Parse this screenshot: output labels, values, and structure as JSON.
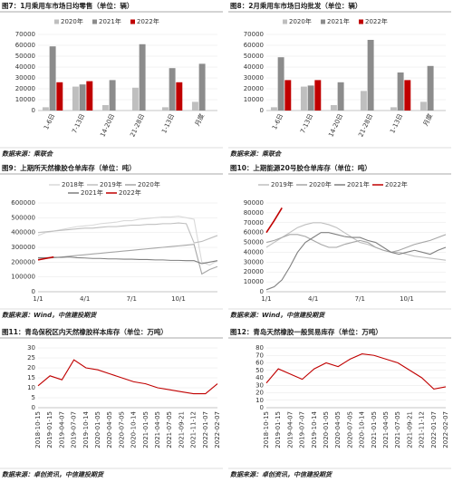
{
  "chart_data": [
    {
      "type": "bar",
      "title": "图7：1月乘用车市场日均零售（单位：辆）",
      "source": "数据来源：乘联会",
      "categories": [
        "1-6日",
        "7-13日",
        "14-20日",
        "21-28日",
        "1-13日",
        "月度"
      ],
      "series": [
        {
          "name": "2020年",
          "color": "#bfbfbf",
          "values": [
            3000,
            22000,
            5000,
            21000,
            3000,
            8000
          ]
        },
        {
          "name": "2021年",
          "color": "#8c8c8c",
          "values": [
            59000,
            24000,
            28000,
            61000,
            39000,
            43000
          ]
        },
        {
          "name": "2022年",
          "color": "#c00000",
          "values": [
            26000,
            27000,
            null,
            null,
            26000,
            null
          ]
        }
      ],
      "ylim": [
        0,
        70000
      ],
      "yticks": [
        0,
        10000,
        20000,
        30000,
        40000,
        50000,
        60000,
        70000
      ]
    },
    {
      "type": "bar",
      "title": "图8：2月乘用车市场日均批发（单位：辆）",
      "source": "数据来源：乘联会",
      "categories": [
        "1-6日",
        "7-13日",
        "14-20日",
        "21-28日",
        "1-13日",
        "月度"
      ],
      "series": [
        {
          "name": "2020年",
          "color": "#bfbfbf",
          "values": [
            3000,
            22000,
            5000,
            18000,
            3000,
            8000
          ]
        },
        {
          "name": "2021年",
          "color": "#8c8c8c",
          "values": [
            49000,
            23000,
            26000,
            65000,
            35000,
            41000
          ]
        },
        {
          "name": "2022年",
          "color": "#c00000",
          "values": [
            28000,
            28000,
            null,
            null,
            28000,
            null
          ]
        }
      ],
      "ylim": [
        0,
        70000
      ],
      "yticks": [
        0,
        10000,
        20000,
        30000,
        40000,
        50000,
        60000,
        70000
      ]
    },
    {
      "type": "line",
      "title": "图9：上期所天然橡胶仓单库存（单位：吨）",
      "source": "数据来源：Wind，中信建投期货",
      "categories": [
        "1/1",
        null,
        null,
        null,
        null,
        null,
        "4/1",
        null,
        null,
        null,
        null,
        null,
        "7/1",
        null,
        null,
        null,
        null,
        null,
        "10/1",
        null,
        null,
        null,
        null,
        null
      ],
      "series": [
        {
          "name": "2018年",
          "color": "#d9d9d9",
          "values": [
            380000,
            400000,
            410000,
            420000,
            430000,
            440000,
            445000,
            450000,
            460000,
            465000,
            470000,
            480000,
            480000,
            490000,
            495000,
            500000,
            505000,
            505000,
            510000,
            500000,
            490000,
            200000,
            180000,
            210000
          ]
        },
        {
          "name": "2019年",
          "color": "#bfbfbf",
          "values": [
            400000,
            405000,
            410000,
            415000,
            420000,
            425000,
            430000,
            430000,
            435000,
            440000,
            440000,
            445000,
            450000,
            450000,
            455000,
            455000,
            460000,
            460000,
            465000,
            460000,
            330000,
            340000,
            360000,
            380000
          ]
        },
        {
          "name": "2020年",
          "color": "#a6a6a6",
          "values": [
            220000,
            225000,
            230000,
            235000,
            240000,
            245000,
            250000,
            255000,
            260000,
            265000,
            270000,
            275000,
            280000,
            285000,
            290000,
            295000,
            300000,
            305000,
            310000,
            315000,
            320000,
            120000,
            150000,
            170000
          ]
        },
        {
          "name": "2021年",
          "color": "#7f7f7f",
          "values": [
            230000,
            230000,
            232000,
            232000,
            235000,
            230000,
            228000,
            225000,
            225000,
            222000,
            222000,
            220000,
            220000,
            218000,
            218000,
            215000,
            215000,
            212000,
            212000,
            210000,
            210000,
            190000,
            200000,
            210000
          ]
        },
        {
          "name": "2022年",
          "color": "#c00000",
          "values": [
            215000,
            225000,
            235000,
            null,
            null,
            null,
            null,
            null,
            null,
            null,
            null,
            null,
            null,
            null,
            null,
            null,
            null,
            null,
            null,
            null,
            null,
            null,
            null,
            null
          ]
        }
      ],
      "ylim": [
        0,
        600000
      ],
      "yticks": [
        0,
        100000,
        200000,
        300000,
        400000,
        500000,
        600000
      ]
    },
    {
      "type": "line",
      "title": "图10：上期能源20号胶仓单库存（单位：吨）",
      "source": "数据来源：Wind，中信建投期货",
      "categories": [
        "1/1",
        null,
        null,
        null,
        null,
        null,
        "4/1",
        null,
        null,
        null,
        null,
        null,
        "7/1",
        null,
        null,
        null,
        null,
        null,
        "10/1",
        null,
        null,
        null,
        null,
        null
      ],
      "series": [
        {
          "name": "2019年",
          "color": "#bfbfbf",
          "values": [
            45000,
            50000,
            55000,
            60000,
            65000,
            68000,
            70000,
            70000,
            68000,
            65000,
            60000,
            55000,
            50000,
            48000,
            45000,
            42000,
            40000,
            40000,
            38000,
            36000,
            35000,
            34000,
            33000,
            32000
          ]
        },
        {
          "name": "2020年",
          "color": "#a6a6a6",
          "values": [
            50000,
            52000,
            55000,
            58000,
            58000,
            56000,
            52000,
            48000,
            45000,
            45000,
            48000,
            50000,
            52000,
            50000,
            45000,
            42000,
            40000,
            42000,
            45000,
            48000,
            50000,
            52000,
            55000,
            58000
          ]
        },
        {
          "name": "2021年",
          "color": "#7f7f7f",
          "values": [
            2000,
            5000,
            12000,
            25000,
            40000,
            50000,
            55000,
            60000,
            60000,
            58000,
            56000,
            55000,
            55000,
            52000,
            50000,
            45000,
            40000,
            38000,
            40000,
            42000,
            40000,
            38000,
            42000,
            45000
          ]
        },
        {
          "name": "2022年",
          "color": "#c00000",
          "values": [
            60000,
            72000,
            85000,
            null,
            null,
            null,
            null,
            null,
            null,
            null,
            null,
            null,
            null,
            null,
            null,
            null,
            null,
            null,
            null,
            null,
            null,
            null,
            null,
            null
          ]
        }
      ],
      "ylim": [
        0,
        90000
      ],
      "yticks": [
        0,
        10000,
        20000,
        30000,
        40000,
        50000,
        60000,
        70000,
        80000,
        90000
      ]
    },
    {
      "type": "line",
      "title": "图11：青岛保税区内天然橡胶样本库存（单位：万吨）",
      "source": "数据来源：卓创资讯，中信建投期货",
      "categories": [
        "2018-10-15",
        "2019-01-15",
        "2019-04-07",
        "2019-07-07",
        "2019-10-14",
        "2020-01-05",
        "2020-04-05",
        "2020-07-05",
        "2020-10-14",
        "2021-01-05",
        "2021-04-05",
        "2021-07-05",
        "2021-09-21",
        "2021-11-12",
        "2022-01-07",
        "2022-02-07"
      ],
      "series": [
        {
          "name": null,
          "color": "#c00000",
          "values": [
            11,
            16,
            14,
            24,
            20,
            19,
            17,
            15,
            13,
            12,
            10,
            9,
            8,
            7,
            7,
            12
          ]
        }
      ],
      "ylim": [
        0,
        30
      ],
      "yticks": [
        0,
        5,
        10,
        15,
        20,
        25,
        30
      ]
    },
    {
      "type": "line",
      "title": "图12：青岛天然橡胶一般贸易库存（单位：万吨）",
      "source": "数据来源：卓创资讯，中信建投期货",
      "categories": [
        "2018-10-15",
        "2019-01-15",
        "2019-04-07",
        "2019-07-07",
        "2019-10-14",
        "2020-01-05",
        "2020-04-05",
        "2020-07-05",
        "2020-10-14",
        "2021-01-05",
        "2021-04-05",
        "2021-07-05",
        "2021-09-21",
        "2021-11-12",
        "2022-01-07",
        "2022-02-07"
      ],
      "series": [
        {
          "name": null,
          "color": "#c00000",
          "values": [
            33,
            52,
            45,
            38,
            52,
            60,
            55,
            65,
            72,
            70,
            65,
            60,
            50,
            40,
            25,
            28
          ]
        }
      ],
      "ylim": [
        0,
        80
      ],
      "yticks": [
        0,
        10,
        20,
        30,
        40,
        50,
        60,
        70,
        80
      ]
    }
  ]
}
